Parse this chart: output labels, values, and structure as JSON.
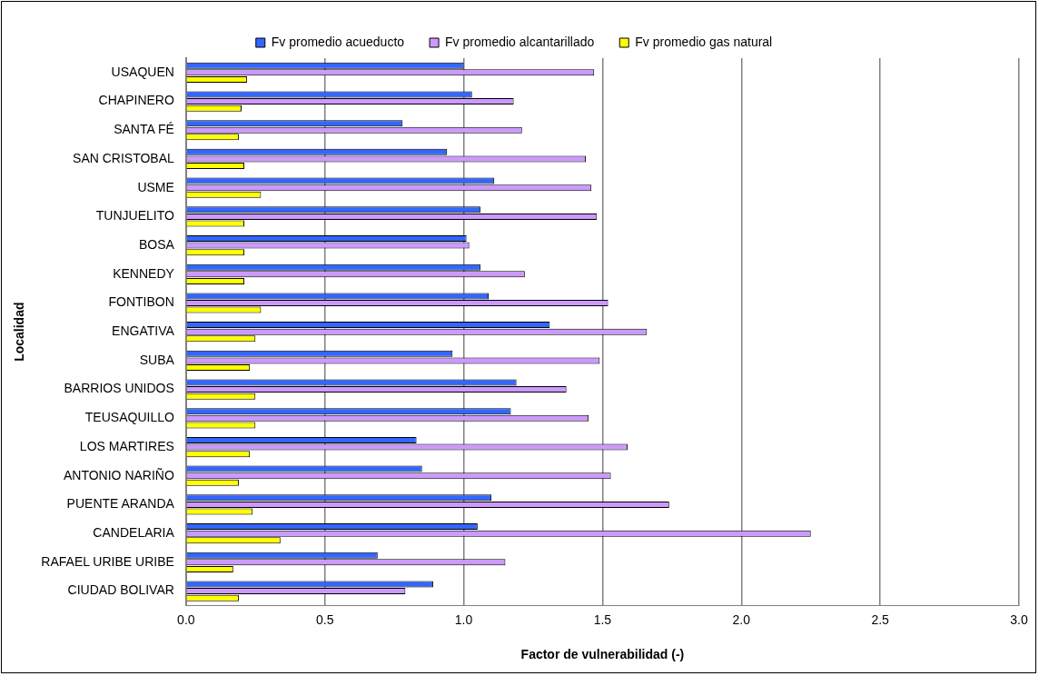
{
  "chart_data": {
    "type": "bar",
    "orientation": "horizontal",
    "xlabel": "Factor de vulnerabilidad (-)",
    "ylabel": "Localidad",
    "categories": [
      "USAQUEN",
      "CHAPINERO",
      "SANTA FÉ",
      "SAN CRISTOBAL",
      "USME",
      "TUNJUELITO",
      "BOSA",
      "KENNEDY",
      "FONTIBON",
      "ENGATIVA",
      "SUBA",
      "BARRIOS UNIDOS",
      "TEUSAQUILLO",
      "LOS MARTIRES",
      "ANTONIO NARIÑO",
      "PUENTE ARANDA",
      "CANDELARIA",
      "RAFAEL URIBE URIBE",
      "CIUDAD BOLIVAR"
    ],
    "series": [
      {
        "name": "Fv promedio acueducto",
        "color": "#3366ff",
        "values": [
          1.0,
          1.03,
          0.78,
          0.94,
          1.11,
          1.06,
          1.01,
          1.06,
          1.09,
          1.31,
          0.96,
          1.19,
          1.17,
          0.83,
          0.85,
          1.1,
          1.05,
          0.69,
          0.89
        ]
      },
      {
        "name": "Fv promedio alcantarillado",
        "color": "#cc99ff",
        "values": [
          1.47,
          1.18,
          1.21,
          1.44,
          1.46,
          1.48,
          1.02,
          1.22,
          1.52,
          1.66,
          1.49,
          1.37,
          1.45,
          1.59,
          1.53,
          1.74,
          2.25,
          1.15,
          0.79
        ]
      },
      {
        "name": "Fv promedio gas natural",
        "color": "#ffff00",
        "values": [
          0.22,
          0.2,
          0.19,
          0.21,
          0.27,
          0.21,
          0.21,
          0.21,
          0.27,
          0.25,
          0.23,
          0.25,
          0.25,
          0.23,
          0.19,
          0.24,
          0.34,
          0.17,
          0.19
        ]
      }
    ],
    "xlim": [
      0,
      3
    ],
    "xticks": [
      {
        "value": 0,
        "label": "0.0"
      },
      {
        "value": 0.5,
        "label": "0.5"
      },
      {
        "value": 1,
        "label": "1.0"
      },
      {
        "value": 1.5,
        "label": "1.5"
      },
      {
        "value": 2,
        "label": "2.0"
      },
      {
        "value": 2.5,
        "label": "2.5"
      },
      {
        "value": 3,
        "label": "3.0"
      }
    ],
    "grid": "x",
    "legend": "top"
  }
}
